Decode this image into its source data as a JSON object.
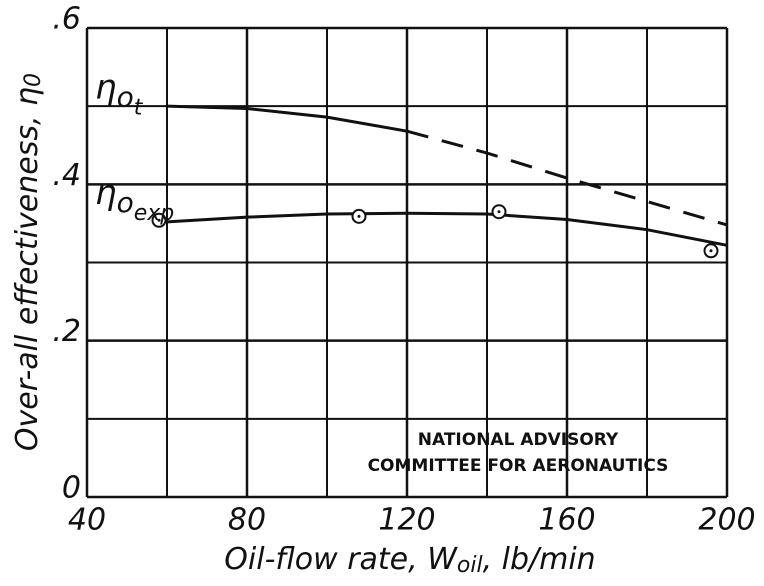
{
  "chart_data": {
    "type": "line",
    "xlabel": [
      "Oil-flow rate, W",
      "oil",
      ", lb/min"
    ],
    "ylabel": [
      "Over-all effectiveness, η",
      "0"
    ],
    "xlim": [
      40,
      200
    ],
    "ylim": [
      0,
      0.6
    ],
    "xticks": [
      40,
      80,
      120,
      160,
      200
    ],
    "minor_xticks": [
      60,
      100,
      140,
      180
    ],
    "yticks": [
      0,
      {
        "value": 0.2,
        "label": ".2"
      },
      {
        "value": 0.4,
        "label": ".4"
      },
      {
        "value": 0.6,
        "label": ".6"
      }
    ],
    "minor_yticks": [
      0.1,
      0.3,
      0.5
    ],
    "grid": true,
    "series": [
      {
        "style": "solid",
        "color": "#111",
        "x": [
          60,
          80,
          100,
          120
        ],
        "values": [
          0.5,
          0.497,
          0.486,
          0.468
        ]
      },
      {
        "style": "dashed",
        "color": "#111",
        "x": [
          120,
          140,
          160,
          180,
          200
        ],
        "values": [
          0.468,
          0.44,
          0.408,
          0.378,
          0.348
        ]
      },
      {
        "style": "solid",
        "color": "#111",
        "x": [
          60,
          80,
          100,
          120,
          140,
          160,
          180,
          200
        ],
        "values": [
          0.352,
          0.358,
          0.362,
          0.363,
          0.362,
          0.355,
          0.342,
          0.322
        ]
      }
    ],
    "points": {
      "x": [
        58,
        108,
        143,
        196
      ],
      "values": [
        0.354,
        0.359,
        0.365,
        0.315
      ]
    },
    "curve_labels": [
      {
        "text": "η",
        "sub": "o",
        "subsub": "t",
        "x": 42,
        "y": 0.51
      },
      {
        "text": "η",
        "sub": "o",
        "subsub": "exp",
        "x": 42,
        "y": 0.375
      }
    ],
    "annotations": [
      "NATIONAL ADVISORY",
      "COMMITTEE FOR AERONAUTICS"
    ]
  }
}
